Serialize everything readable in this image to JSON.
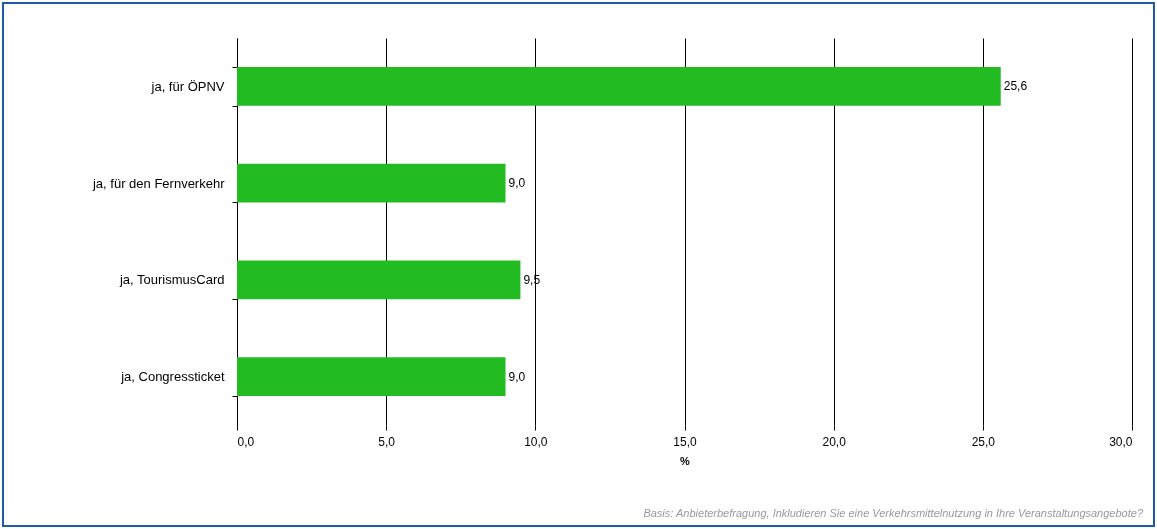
{
  "chart_data": {
    "type": "bar",
    "orientation": "horizontal",
    "xlabel": "%",
    "categories": [
      "ja, für ÖPNV",
      "ja, für den Fernverkehr",
      "ja, TourismusCard",
      "ja, Congressticket"
    ],
    "values": [
      25.6,
      9.0,
      9.5,
      9.0
    ],
    "color": "#22bb22",
    "value_labels": [
      "25,6",
      "9,0",
      "9,5",
      "9,0"
    ],
    "xlim": [
      0,
      30
    ],
    "xticks": [
      {
        "value": 0,
        "label": "0,0"
      },
      {
        "value": 5,
        "label": "5,0"
      },
      {
        "value": 10,
        "label": "10,0"
      },
      {
        "value": 15,
        "label": "15,0"
      },
      {
        "value": 20,
        "label": "20,0"
      },
      {
        "value": 25,
        "label": "25,0"
      },
      {
        "value": 30,
        "label": "30,0"
      }
    ],
    "grid": "x",
    "annotations": [
      "Basis: Anbieterbefragung, Inkludieren Sie eine Verkehrsmittelnutzung in Ihre Veranstaltungsangebote?"
    ]
  }
}
